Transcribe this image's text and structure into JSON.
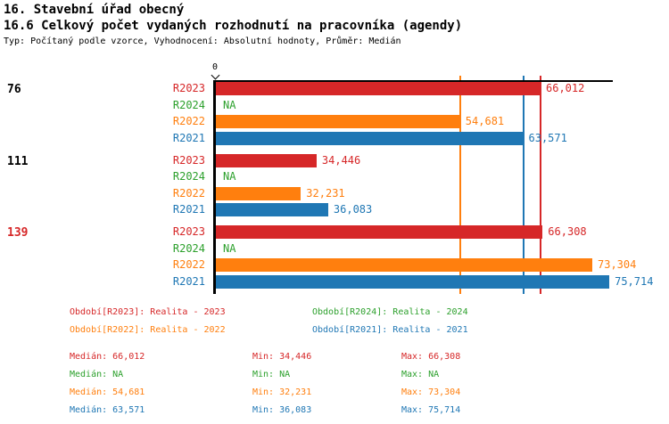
{
  "header": {
    "title1": "16. Stavební úřad obecný",
    "title2": "16.6 Celkový počet vydaných rozhodnutí na pracovníka (agendy)",
    "subtitle": "Typ: Počítaný podle vzorce, Vyhodnocení: Absolutní hodnoty, Průměr: Medián"
  },
  "colors": {
    "R2023": "#d62728",
    "R2024": "#2ca02c",
    "R2022": "#ff7f0e",
    "R2021": "#1f77b4",
    "group_normal": "#000000",
    "group_highlight": "#d62728",
    "axis": "#000000"
  },
  "chart_data": {
    "type": "bar",
    "orientation": "horizontal",
    "title": "16.6 Celkový počet vydaných rozhodnutí na pracovníka (agendy)",
    "x_tick_labels": [
      "0"
    ],
    "axis_domain": [
      20253,
      76200
    ],
    "series_order": [
      "R2023",
      "R2024",
      "R2022",
      "R2021"
    ],
    "groups": [
      {
        "label": "76",
        "highlight": false,
        "bars": [
          {
            "series": "R2023",
            "value": 66012,
            "label": "66,012"
          },
          {
            "series": "R2024",
            "value": null,
            "label": "NA"
          },
          {
            "series": "R2022",
            "value": 54681,
            "label": "54,681"
          },
          {
            "series": "R2021",
            "value": 63571,
            "label": "63,571"
          }
        ]
      },
      {
        "label": "111",
        "highlight": false,
        "bars": [
          {
            "series": "R2023",
            "value": 34446,
            "label": "34,446"
          },
          {
            "series": "R2024",
            "value": null,
            "label": "NA"
          },
          {
            "series": "R2022",
            "value": 32231,
            "label": "32,231"
          },
          {
            "series": "R2021",
            "value": 36083,
            "label": "36,083"
          }
        ]
      },
      {
        "label": "139",
        "highlight": true,
        "bars": [
          {
            "series": "R2023",
            "value": 66308,
            "label": "66,308"
          },
          {
            "series": "R2024",
            "value": null,
            "label": "NA"
          },
          {
            "series": "R2022",
            "value": 73304,
            "label": "73,304"
          },
          {
            "series": "R2021",
            "value": 75714,
            "label": "75,714"
          }
        ]
      }
    ],
    "median_lines": [
      {
        "series": "R2023",
        "value": 66012
      },
      {
        "series": "R2022",
        "value": 54681
      },
      {
        "series": "R2021",
        "value": 63571
      }
    ],
    "legend_position": "bottom",
    "grid": false
  },
  "legend": {
    "items": [
      {
        "series": "R2023",
        "label": "Období[R2023]: Realita - 2023"
      },
      {
        "series": "R2024",
        "label": "Období[R2024]: Realita - 2024"
      },
      {
        "series": "R2022",
        "label": "Období[R2022]: Realita - 2022"
      },
      {
        "series": "R2021",
        "label": "Období[R2021]: Realita - 2021"
      }
    ]
  },
  "stats": {
    "rows": [
      {
        "series": "R2023",
        "median": "Medián: 66,012",
        "min": "Min: 34,446",
        "max": "Max: 66,308"
      },
      {
        "series": "R2024",
        "median": "Medián: NA",
        "min": "Min: NA",
        "max": "Max: NA"
      },
      {
        "series": "R2022",
        "median": "Medián: 54,681",
        "min": "Min: 32,231",
        "max": "Max: 73,304"
      },
      {
        "series": "R2021",
        "median": "Medián: 63,571",
        "min": "Min: 36,083",
        "max": "Max: 75,714"
      }
    ]
  }
}
